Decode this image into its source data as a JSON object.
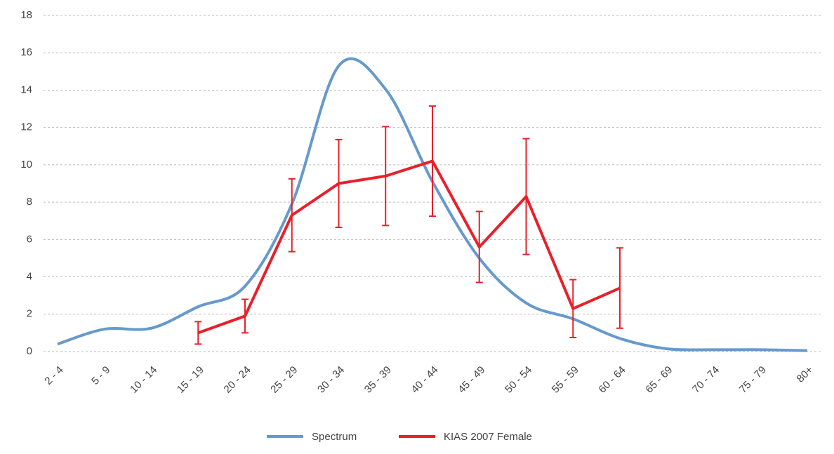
{
  "chart_data": {
    "type": "line",
    "categories": [
      "2 - 4",
      "5 - 9",
      "10 - 14",
      "15 - 19",
      "20 - 24",
      "25 - 29",
      "30 - 34",
      "35 - 39",
      "40 - 44",
      "45 - 49",
      "50 - 54",
      "55 - 59",
      "60 - 64",
      "65 - 69",
      "70 - 74",
      "75 - 79",
      "80+"
    ],
    "series": [
      {
        "name": "Spectrum",
        "color": "#6699cc",
        "smooth": true,
        "values": [
          0.4,
          1.2,
          1.25,
          2.4,
          3.5,
          7.9,
          15.3,
          14.05,
          9.1,
          5.0,
          2.6,
          1.75,
          0.7,
          0.15,
          0.1,
          0.1,
          0.05
        ]
      },
      {
        "name": "KIAS 2007 Female",
        "color": "#e8202a",
        "smooth": false,
        "values": [
          null,
          null,
          null,
          1.0,
          1.9,
          7.3,
          9.0,
          9.4,
          10.2,
          5.6,
          8.3,
          2.3,
          3.4,
          null,
          null,
          null,
          null
        ],
        "errors": [
          null,
          null,
          null,
          0.6,
          0.9,
          1.95,
          2.35,
          2.65,
          2.95,
          1.9,
          3.1,
          1.55,
          2.15,
          null,
          null,
          null,
          null
        ]
      }
    ],
    "ylim": [
      0,
      18
    ],
    "yticks": [
      0,
      2,
      4,
      6,
      8,
      10,
      12,
      14,
      16,
      18
    ],
    "grid": true,
    "legend": "bottom"
  }
}
